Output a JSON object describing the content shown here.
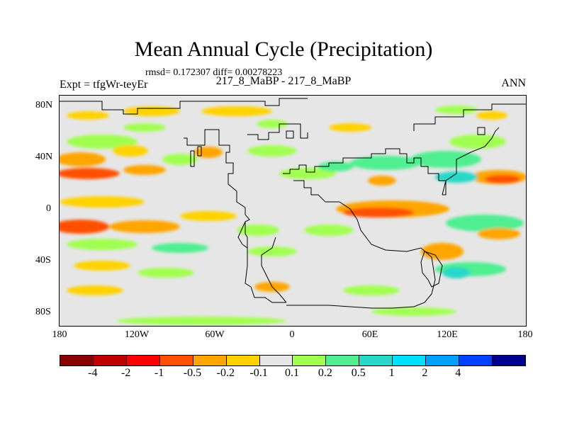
{
  "title": "Mean Annual Cycle (Precipitation)",
  "stats": "rmsd= 0.172307 diff= 0.00278223",
  "expt_label": "Expt = tfgWr-teyEr",
  "comparison_label": "217_8_MaBP - 217_8_MaBP",
  "season_label": "ANN",
  "lat_ticks": [
    "80N",
    "40N",
    "0",
    "40S",
    "80S"
  ],
  "lon_ticks": [
    "180",
    "120W",
    "60W",
    "0",
    "60E",
    "120E",
    "180"
  ],
  "colorbar": {
    "colors": [
      "#8b0000",
      "#c00000",
      "#ff0000",
      "#ff5000",
      "#ffa500",
      "#ffd200",
      "#e6e6e6",
      "#a0ff50",
      "#50ee90",
      "#28d8c8",
      "#00e0ff",
      "#00a0ff",
      "#0040ff",
      "#000090"
    ],
    "labels": [
      "-4",
      "-2",
      "-1",
      "-0.5",
      "-0.2",
      "-0.1",
      "0.1",
      "0.2",
      "0.5",
      "1",
      "2",
      "4"
    ]
  }
}
